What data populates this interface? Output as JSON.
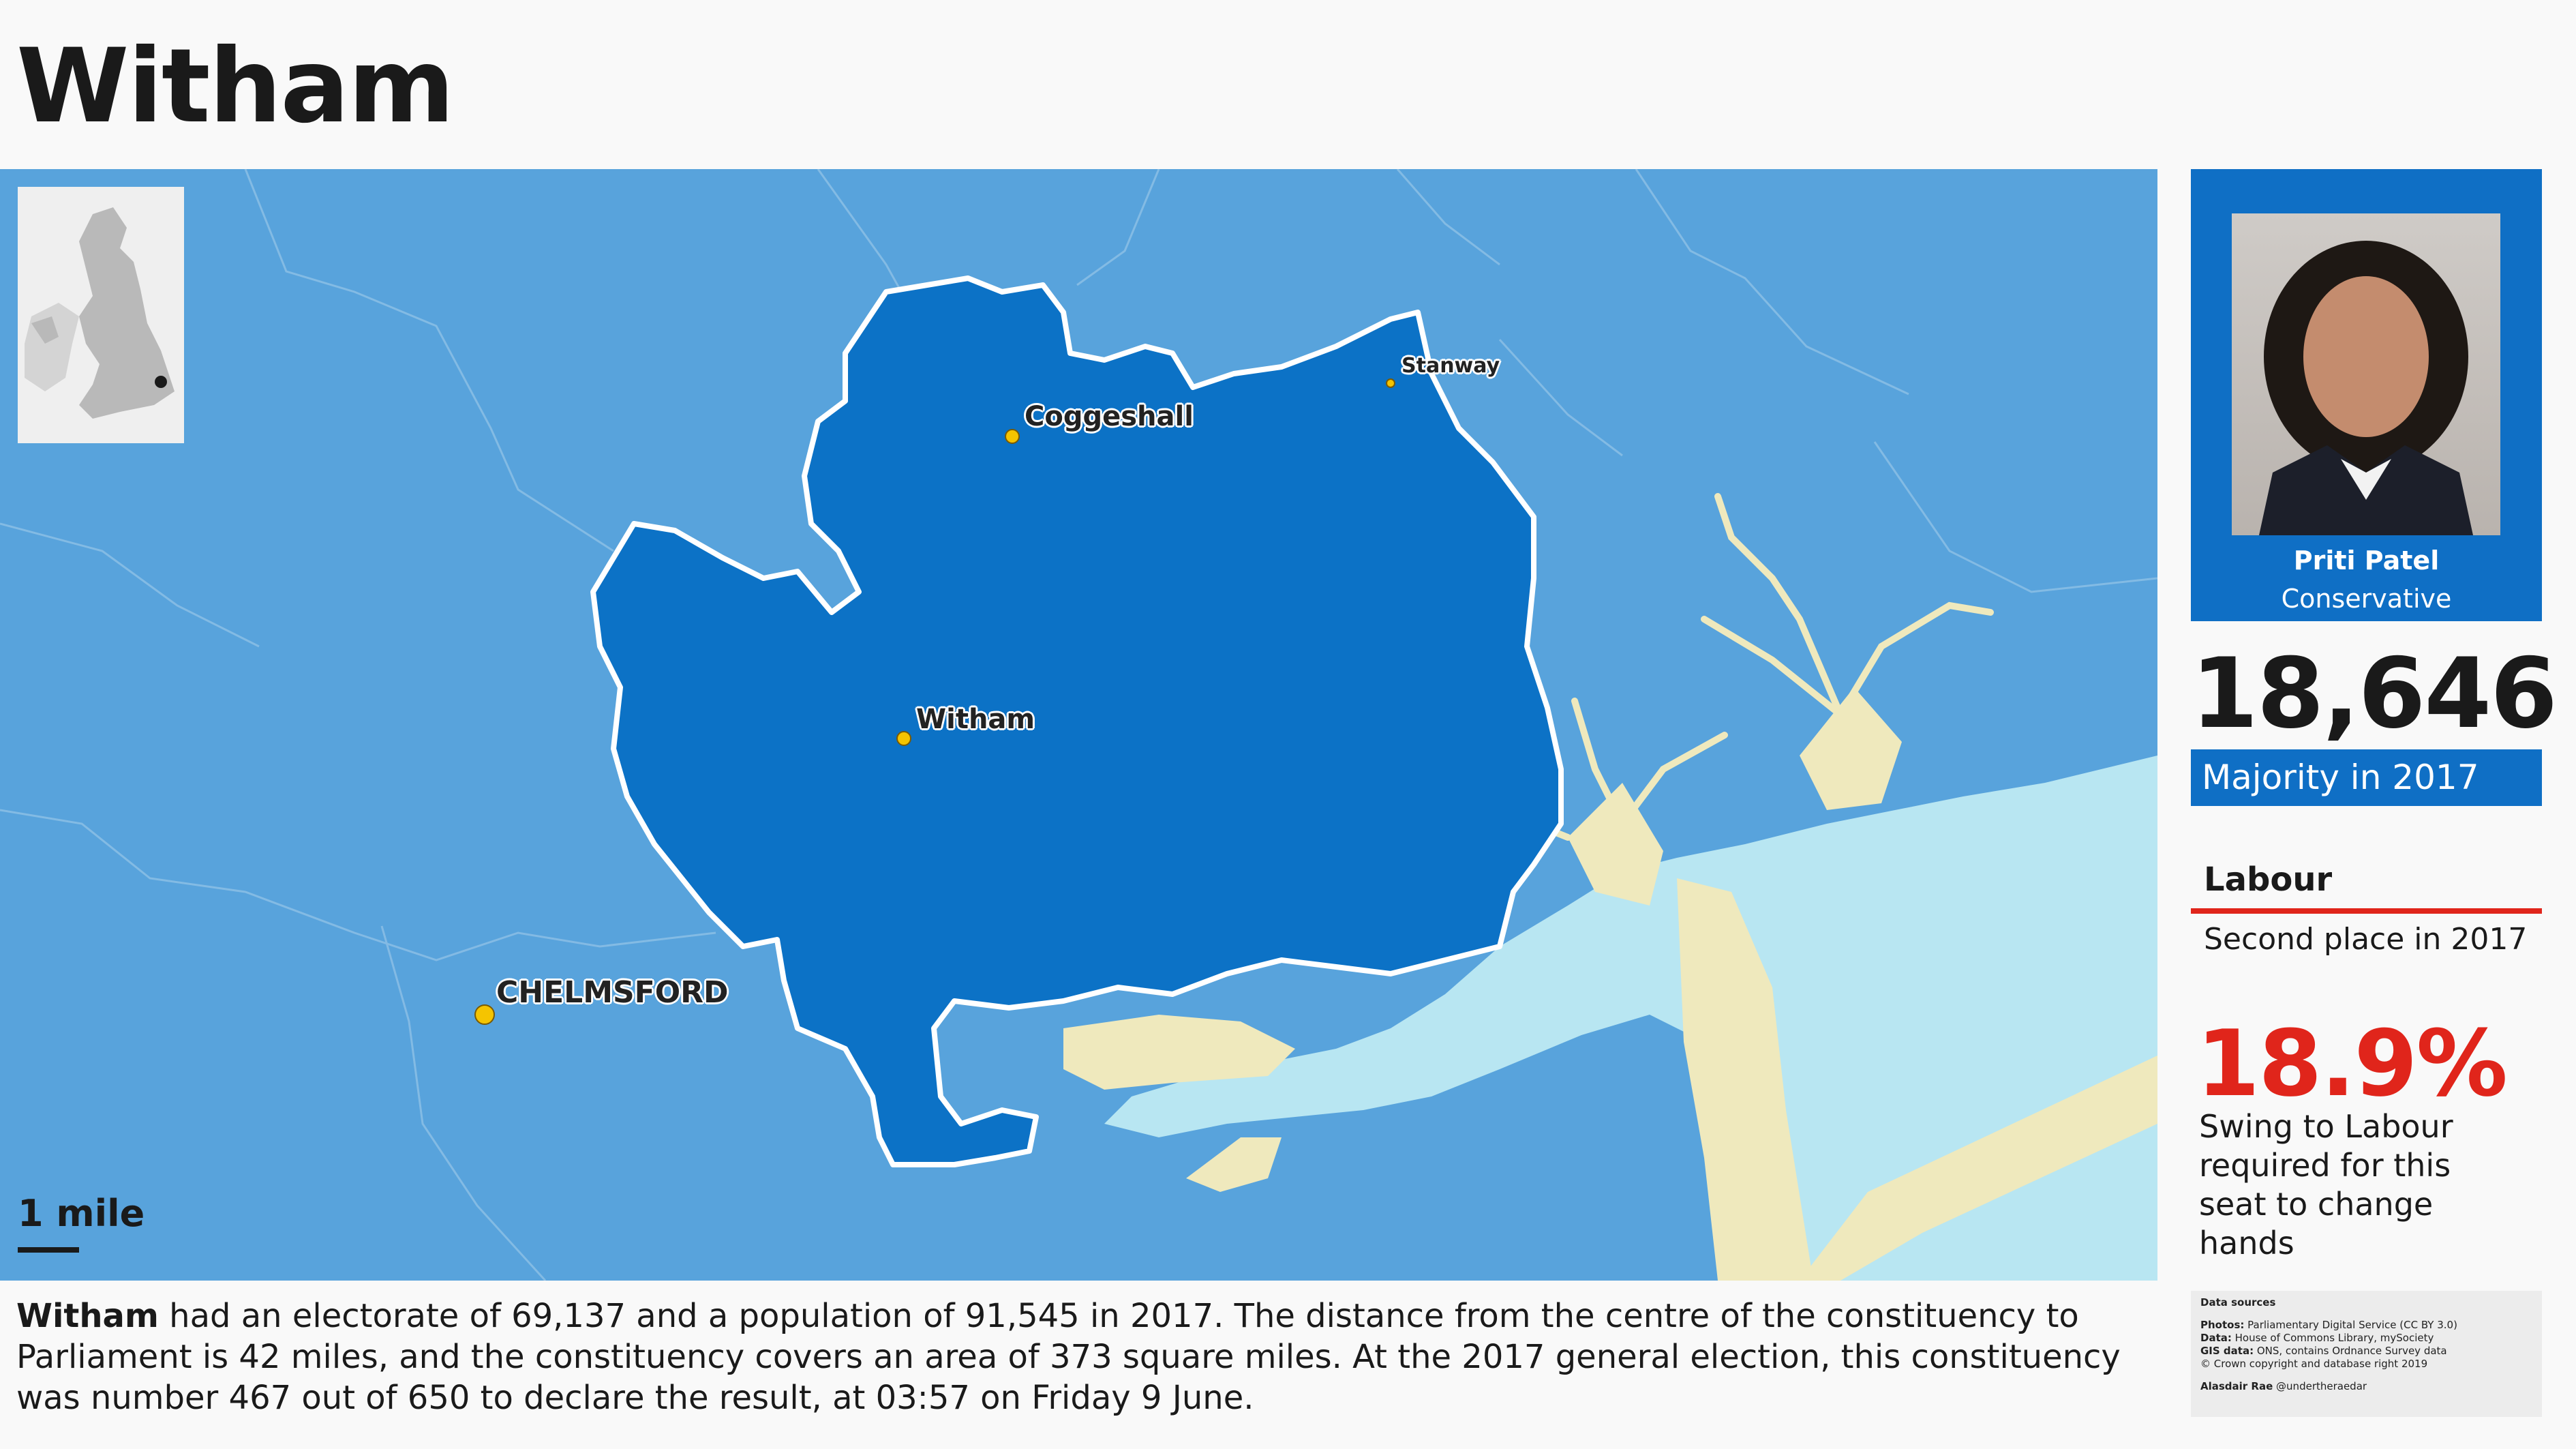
{
  "title": "Witham",
  "map": {
    "places": {
      "coggeshall": "Coggeshall",
      "stanway": "Stanway",
      "witham": "Witham",
      "chelmsford": "CHELMSFORD"
    },
    "scale_label": "1 mile",
    "colors": {
      "sea": "#b8e6f2",
      "land": "#58a3dc",
      "constituency": "#0c72c6",
      "mudflats": "#efe9bd",
      "towns": "#f5c400"
    }
  },
  "mp": {
    "name": "Priti Patel",
    "party": "Conservative",
    "party_color": "#0f6fc5"
  },
  "majority": {
    "value": "18,646",
    "label": "Majority in 2017"
  },
  "second": {
    "party": "Labour",
    "label": "Second place in 2017",
    "color": "#e0251b"
  },
  "swing": {
    "value": "18.9%",
    "label": "Swing to Labour required for this seat to change hands"
  },
  "description": {
    "name": "Witham",
    "text": " had an electorate of 69,137 and a population of 91,545 in 2017. The distance from the centre of the constituency to Parliament is 42 miles, and the constituency covers an area of 373 square miles. At the 2017 general election, this constituency was number 467 out of 650 to declare the result, at 03:57 on Friday 9 June."
  },
  "sources": {
    "heading": "Data sources",
    "photos_label": "Photos:",
    "photos": " Parliamentary Digital Service (CC BY 3.0)",
    "data_label": "Data:",
    "data": " House of Commons Library, mySociety",
    "gis_label": "GIS data:",
    "gis": " ONS, contains Ordnance Survey data",
    "copyright": "© Crown copyright and database right 2019",
    "author_label": "Alasdair Rae",
    "author": " @undertheraedar"
  }
}
